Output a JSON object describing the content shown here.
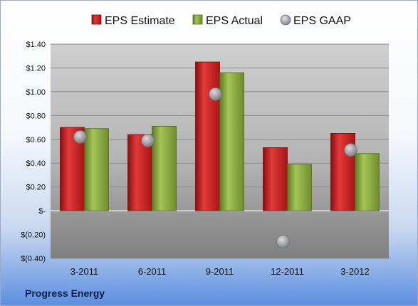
{
  "company": "Progress Energy",
  "chart_data": {
    "type": "bar",
    "categories": [
      "3-2011",
      "6-2011",
      "9-2011",
      "12-2011",
      "3-2012"
    ],
    "series": [
      {
        "name": "EPS Estimate",
        "kind": "bar",
        "color": "#d42020",
        "values": [
          0.7,
          0.64,
          1.25,
          0.53,
          0.65
        ]
      },
      {
        "name": "EPS Actual",
        "kind": "bar",
        "color": "#8fae3c",
        "values": [
          0.69,
          0.71,
          1.16,
          0.39,
          0.48
        ]
      },
      {
        "name": "EPS GAAP",
        "kind": "marker",
        "color": "#9aa0a8",
        "values": [
          0.62,
          0.59,
          0.98,
          -0.26,
          0.51
        ]
      }
    ],
    "yticks": [
      1.4,
      1.2,
      1.0,
      0.8,
      0.6,
      0.4,
      0.2,
      0,
      -0.2,
      -0.4
    ],
    "ytick_labels": [
      "$1.40",
      "$1.20",
      "$1.00",
      "$0.80",
      "$0.60",
      "$0.40",
      "$0.20",
      "$-",
      "$(0.20)",
      "$(0.40)"
    ],
    "ylim": [
      -0.4,
      1.4
    ],
    "grid": true,
    "legend_position": "top"
  }
}
